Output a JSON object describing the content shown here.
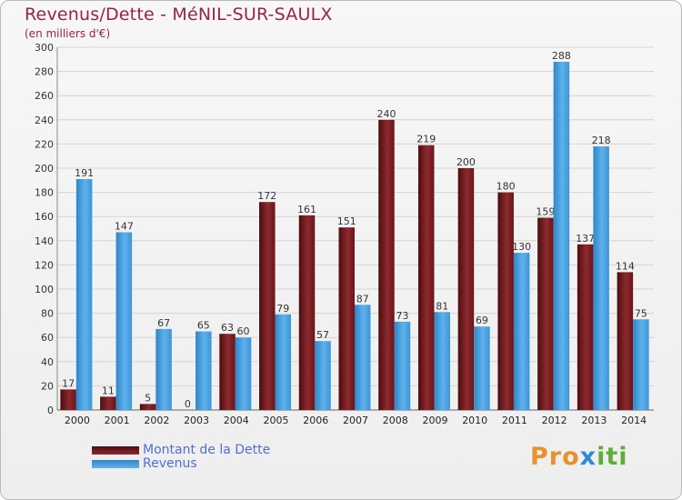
{
  "title": "Revenus/Dette - MéNIL-SUR-SAULX",
  "subtitle": "(en milliers d'€)",
  "colors": {
    "dette": "#7a1a1f",
    "revenus": "#46a0e2",
    "title": "#9b2246"
  },
  "legend": {
    "dette": "Montant de la Dette",
    "revenus": "Revenus"
  },
  "logo": {
    "part1": "Pro",
    "part2": "x",
    "part3": "iti"
  },
  "chart_data": {
    "type": "bar",
    "title": "Revenus/Dette - MéNIL-SUR-SAULX",
    "ylabel": "(en milliers d'€)",
    "xlabel": "",
    "ylim": [
      0,
      300
    ],
    "yticks": [
      0,
      20,
      40,
      60,
      80,
      100,
      120,
      140,
      160,
      180,
      200,
      220,
      240,
      260,
      280,
      300
    ],
    "categories": [
      "2000",
      "2001",
      "2002",
      "2003",
      "2004",
      "2005",
      "2006",
      "2007",
      "2008",
      "2009",
      "2010",
      "2011",
      "2012",
      "2013",
      "2014"
    ],
    "series": [
      {
        "name": "Montant de la Dette",
        "values": [
          17,
          11,
          5,
          0,
          63,
          172,
          161,
          151,
          240,
          219,
          200,
          180,
          159,
          137,
          114
        ]
      },
      {
        "name": "Revenus",
        "values": [
          191,
          147,
          67,
          65,
          60,
          79,
          57,
          87,
          73,
          81,
          69,
          130,
          288,
          218,
          75
        ]
      }
    ],
    "grid": true,
    "legend": "bottom-left"
  }
}
